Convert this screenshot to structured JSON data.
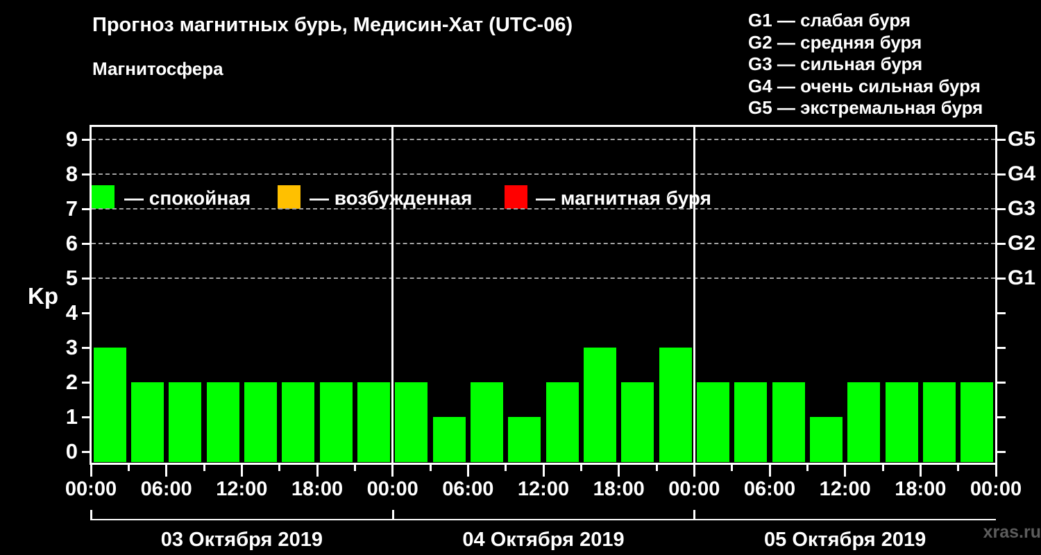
{
  "header": {
    "title": "Прогноз магнитных бурь, Медисин-Хат (UTC-06)",
    "subtitle": "Магнитосфера"
  },
  "legend": {
    "items": [
      {
        "name": "quiet",
        "label": "— спокойная",
        "color": "#00ff00"
      },
      {
        "name": "active",
        "label": "— возбужденная",
        "color": "#ffc000"
      },
      {
        "name": "storm",
        "label": "— магнитная буря",
        "color": "#ff0000"
      }
    ]
  },
  "storm_scale": {
    "items": [
      "G1 — слабая буря",
      "G2 — средняя буря",
      "G3 — сильная буря",
      "G4 — очень сильная буря",
      "G5 — экстремальная буря"
    ]
  },
  "chart_data": {
    "type": "bar",
    "title": "Прогноз магнитных бурь, Медисин-Хат (UTC-06)",
    "subtitle": "Магнитосфера",
    "ylabel": "Kp",
    "ylim": [
      0,
      9
    ],
    "y_ticks": [
      0,
      1,
      2,
      3,
      4,
      5,
      6,
      7,
      8,
      9
    ],
    "grid_levels": [
      5,
      6,
      7,
      8,
      9
    ],
    "grid_style": "dashed",
    "right_axis": [
      {
        "kp": 5,
        "label": "G1"
      },
      {
        "kp": 6,
        "label": "G2"
      },
      {
        "kp": 7,
        "label": "G3"
      },
      {
        "kp": 8,
        "label": "G4"
      },
      {
        "kp": 9,
        "label": "G5"
      }
    ],
    "x_tick_labels": [
      "00:00",
      "06:00",
      "12:00",
      "18:00",
      "00:00",
      "06:00",
      "12:00",
      "18:00",
      "00:00",
      "06:00",
      "12:00",
      "18:00",
      "00:00"
    ],
    "bar_interval_hours": 3,
    "bars_per_day": 8,
    "days": [
      {
        "date": "03 Октября 2019",
        "values": [
          3,
          2,
          2,
          2,
          2,
          2,
          2,
          2
        ]
      },
      {
        "date": "04 Октября 2019",
        "values": [
          2,
          1,
          2,
          1,
          2,
          3,
          2,
          3
        ]
      },
      {
        "date": "05 Октября 2019",
        "values": [
          2,
          2,
          2,
          1,
          2,
          2,
          2,
          2
        ]
      }
    ],
    "colors": {
      "quiet": "#00ff00",
      "active": "#ffc000",
      "storm": "#ff0000"
    },
    "color_rules": {
      "quiet_below": 4,
      "active_at": 4,
      "storm_from": 5
    }
  },
  "footer": {
    "watermark": "xras.ru"
  }
}
